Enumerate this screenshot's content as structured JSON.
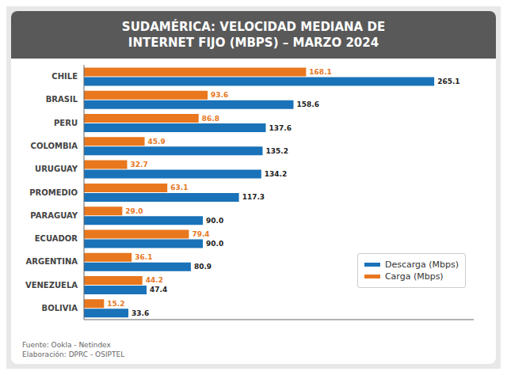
{
  "chart_data": {
    "type": "bar",
    "orientation": "horizontal",
    "title": "SUDAMÉRICA: VELOCIDAD MEDIANA DE\nINTERNET FIJO (MBPS) – MARZO 2024",
    "categories": [
      "BOLIVIA",
      "VENEZUELA",
      "ARGENTINA",
      "ECUADOR",
      "PARAGUAY",
      "PROMEDIO",
      "URUGUAY",
      "COLOMBIA",
      "PERU",
      "BRASIL",
      "CHILE"
    ],
    "series": [
      {
        "name": "Descarga (Mbps)",
        "color": "#1a72b8",
        "values": [
          33.6,
          47.4,
          80.9,
          90.0,
          90.0,
          117.3,
          134.2,
          135.2,
          137.6,
          158.6,
          265.1
        ],
        "value_labels": [
          "33.6",
          "47.4",
          "80.9",
          "90.0",
          "90.0",
          "117.3",
          "134.2",
          "135.2",
          "137.6",
          "158.6",
          "265.1"
        ]
      },
      {
        "name": "Carga (Mbps)",
        "color": "#e8771e",
        "values": [
          15.2,
          44.2,
          36.1,
          79.4,
          29.0,
          63.1,
          32.7,
          45.9,
          86.8,
          93.6,
          168.1
        ],
        "value_labels": [
          "15.2",
          "44.2",
          "36.1",
          "79.4",
          "29.0",
          "63.1",
          "32.7",
          "45.9",
          "86.8",
          "93.6",
          "168.1"
        ]
      }
    ],
    "xlim": [
      0,
      295
    ],
    "data_labels": true,
    "tick_labels": "y",
    "legend": "lower right",
    "annotations": [
      "Fuente: Ookla - Netindex",
      "Elaboración: DPRC - OSIPTEL"
    ]
  }
}
